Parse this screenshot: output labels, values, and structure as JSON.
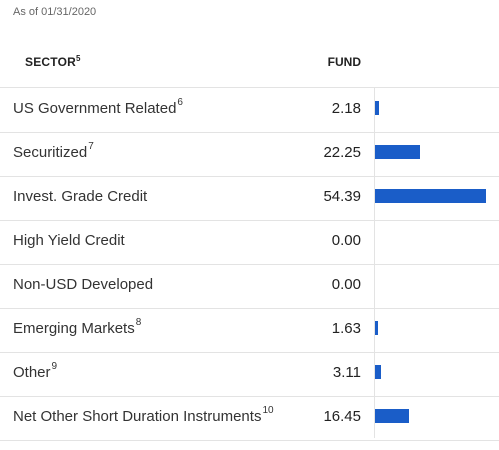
{
  "as_of": "As of 01/31/2020",
  "header": {
    "sector": "SECTOR",
    "sector_note": "5",
    "fund": "FUND"
  },
  "accent_color": "#1a5dc8",
  "chart_data": {
    "type": "bar",
    "categories": [
      "US Government Related",
      "Securitized",
      "Invest. Grade Credit",
      "High Yield Credit",
      "Non-USD Developed",
      "Emerging Markets",
      "Other",
      "Net Other Short Duration Instruments"
    ],
    "values": [
      2.18,
      22.25,
      54.39,
      0.0,
      0.0,
      1.63,
      3.11,
      16.45
    ]
  },
  "rows": [
    {
      "label": "US Government Related",
      "note": "6",
      "value": "2.18"
    },
    {
      "label": "Securitized",
      "note": "7",
      "value": "22.25"
    },
    {
      "label": "Invest. Grade Credit",
      "note": "",
      "value": "54.39"
    },
    {
      "label": "High Yield Credit",
      "note": "",
      "value": "0.00"
    },
    {
      "label": "Non-USD Developed",
      "note": "",
      "value": "0.00"
    },
    {
      "label": "Emerging Markets",
      "note": "8",
      "value": "1.63"
    },
    {
      "label": "Other",
      "note": "9",
      "value": "3.11"
    },
    {
      "label": "Net Other Short Duration Instruments",
      "note": "10",
      "value": "16.45"
    }
  ]
}
